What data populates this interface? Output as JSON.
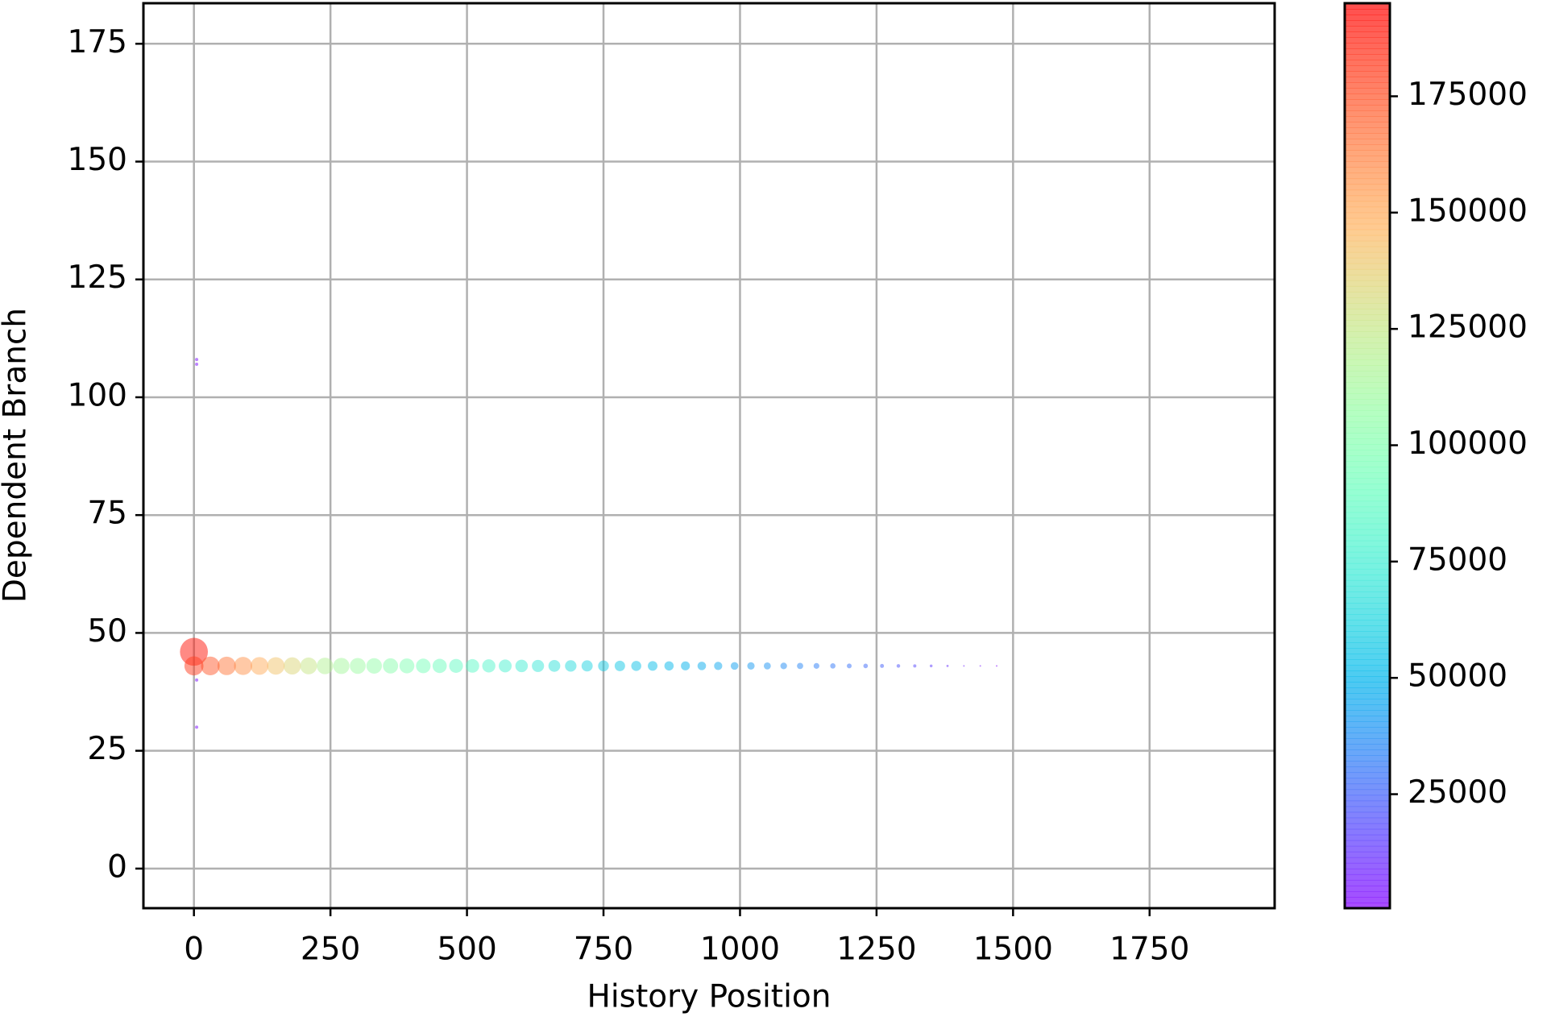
{
  "chart_data": {
    "type": "scatter",
    "xlabel": "History Position",
    "ylabel": "Dependent Branch",
    "x": [
      0,
      30,
      60,
      90,
      120,
      150,
      180,
      210,
      240,
      270,
      300,
      330,
      360,
      390,
      420,
      450,
      480,
      510,
      540,
      570,
      600,
      630,
      660,
      690,
      720,
      750,
      780,
      810,
      840,
      870,
      900,
      930,
      960,
      990,
      1020,
      1050,
      1080,
      1110,
      1140,
      1170,
      1200,
      1230,
      1260,
      1290,
      1320,
      1350,
      1380,
      1410,
      1440,
      1470,
      0,
      5,
      5,
      5,
      5
    ],
    "y": [
      43,
      43,
      43,
      43,
      43,
      43,
      43,
      43,
      43,
      43,
      43,
      43,
      43,
      43,
      43,
      43,
      43,
      43,
      43,
      43,
      43,
      43,
      43,
      43,
      43,
      43,
      43,
      43,
      43,
      43,
      43,
      43,
      43,
      43,
      43,
      43,
      43,
      43,
      43,
      43,
      43,
      43,
      43,
      43,
      43,
      43,
      43,
      43,
      43,
      43,
      46,
      108,
      107,
      40,
      30
    ],
    "c": [
      180000,
      172200,
      164400,
      156600,
      148800,
      141000,
      133200,
      125400,
      117600,
      112600,
      109000,
      105400,
      101800,
      98200,
      94600,
      91000,
      87400,
      83920,
      80680,
      77440,
      74200,
      70960,
      67720,
      64480,
      61240,
      58000,
      56080,
      54160,
      52240,
      50320,
      48400,
      46480,
      44560,
      42640,
      40640,
      38600,
      36560,
      34520,
      32480,
      30440,
      28400,
      26360,
      23900,
      20600,
      17400,
      14100,
      10800,
      7500,
      4300,
      1000,
      190000,
      3000,
      3000,
      3000,
      3000
    ],
    "sizes": [
      140,
      135,
      131,
      127,
      122,
      118,
      114,
      109,
      105,
      101,
      97,
      93,
      89,
      86,
      82,
      78,
      74,
      71,
      67,
      64,
      60,
      57,
      54,
      51,
      48,
      45,
      42,
      39,
      36,
      33,
      31,
      28,
      26,
      23,
      21,
      19,
      17,
      15,
      13,
      11,
      9,
      8,
      6,
      5,
      4,
      3,
      2,
      1,
      1,
      1,
      300,
      4,
      4,
      4,
      4
    ],
    "xlim": [
      -92.5,
      1979
    ],
    "ylim": [
      -8.4,
      183.6
    ],
    "xticks": [
      0,
      250,
      500,
      750,
      1000,
      1250,
      1500,
      1750
    ],
    "yticks": [
      0,
      25,
      50,
      75,
      100,
      125,
      150,
      175
    ],
    "grid": true,
    "colormap": "rainbow",
    "alpha": 0.5,
    "clim": [
      500,
      195000
    ],
    "cticks": [
      25000,
      50000,
      75000,
      100000,
      125000,
      150000,
      175000
    ]
  }
}
